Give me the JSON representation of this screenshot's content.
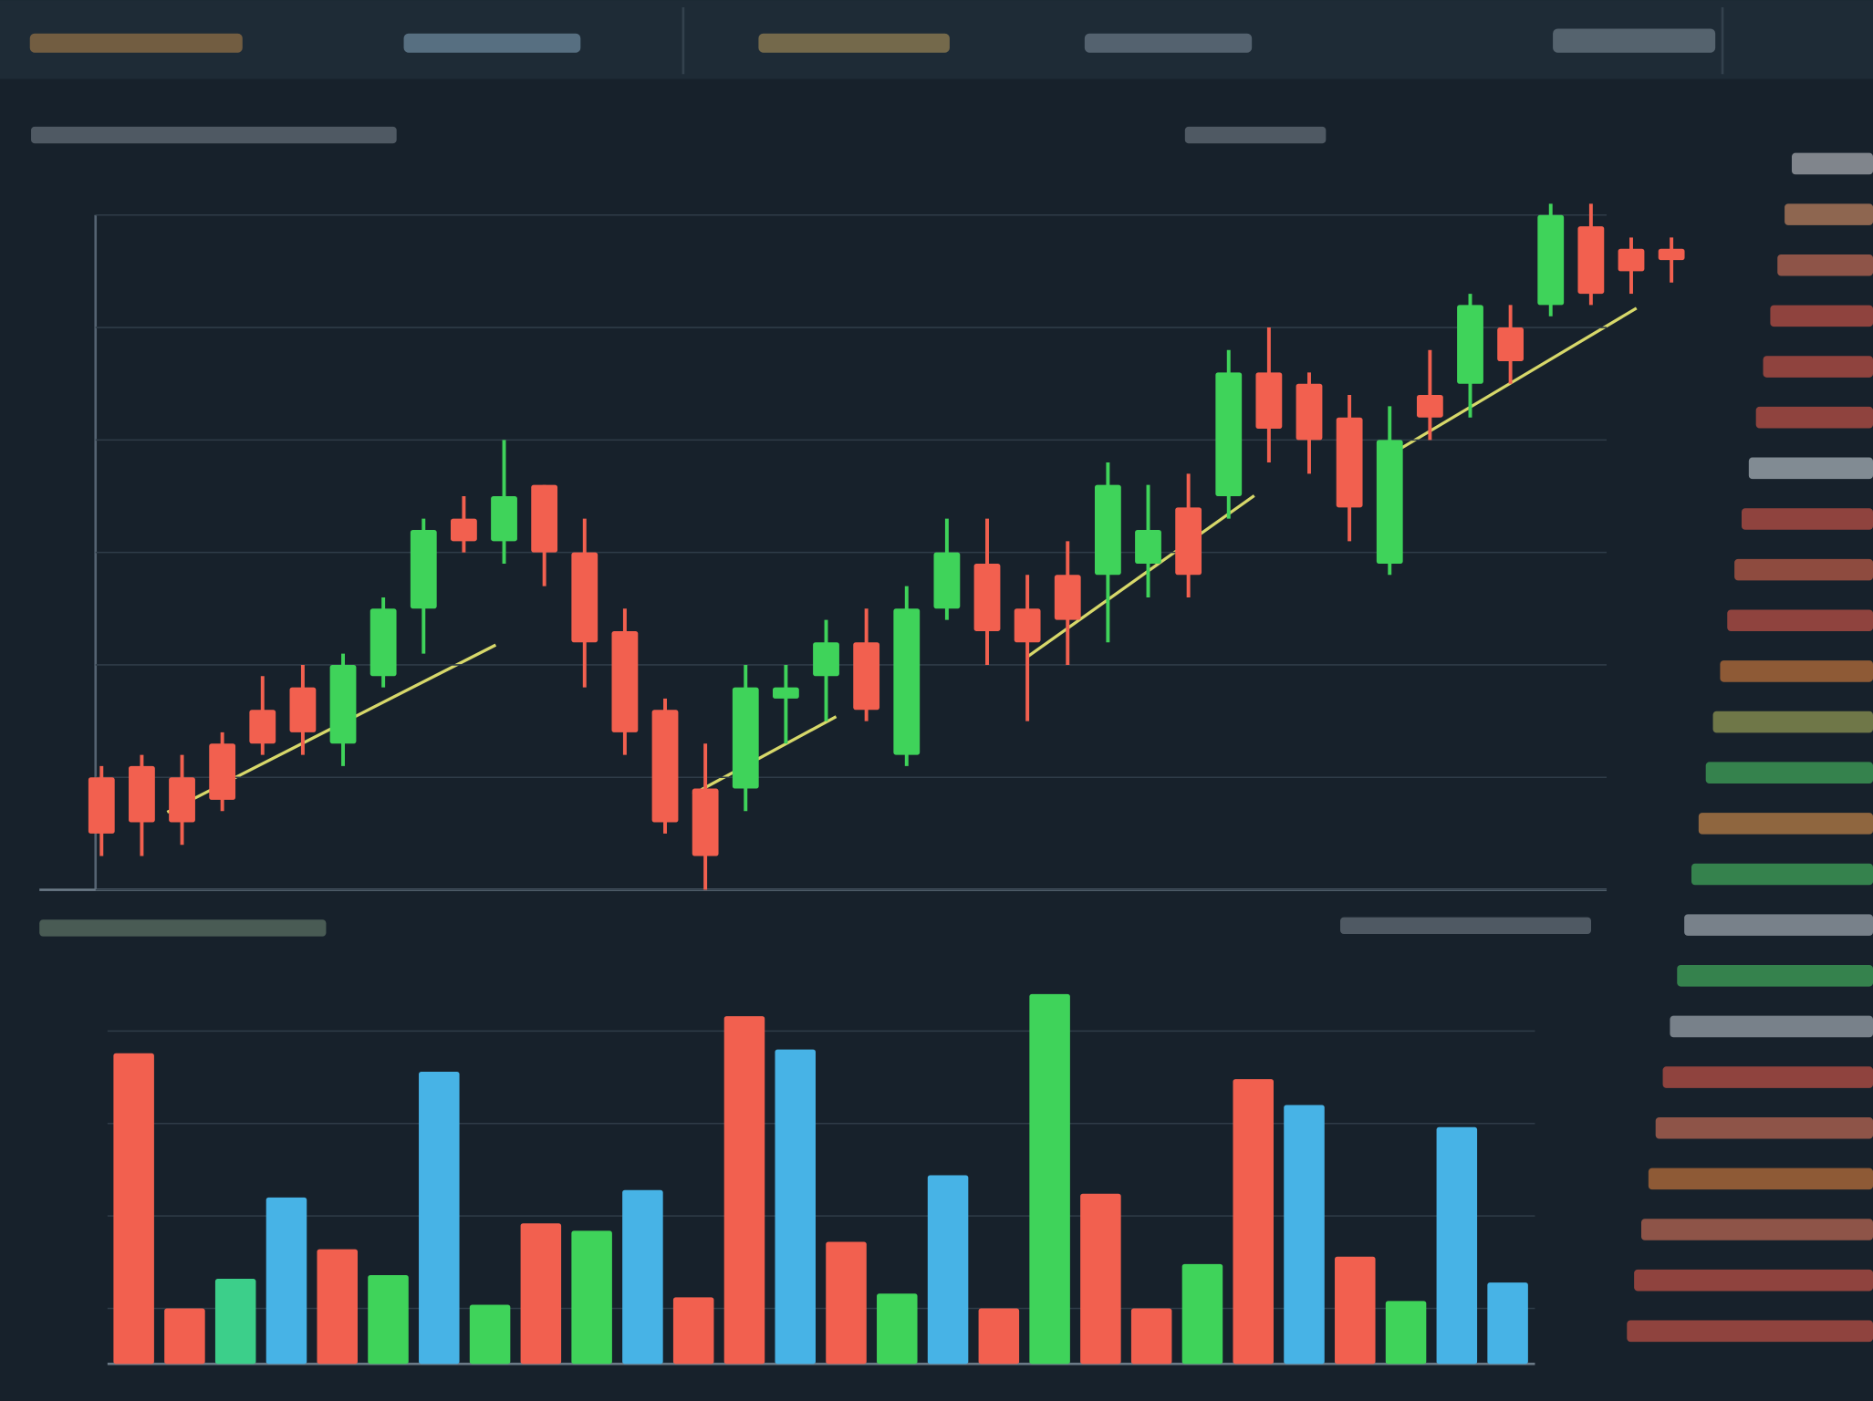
{
  "chart_data": [
    {
      "type": "candlestick",
      "up_color": "#3fd35a",
      "down_color": "#f2604f",
      "open": [
        10,
        11,
        10,
        13,
        16,
        18,
        13,
        19,
        25,
        33,
        31,
        36,
        30,
        23,
        16,
        9,
        9,
        17,
        19,
        22,
        12,
        25,
        29,
        25,
        28,
        28,
        29,
        34,
        35,
        46,
        45,
        42,
        29,
        44,
        45,
        50,
        52,
        59,
        57,
        57
      ],
      "high": [
        11,
        12,
        12,
        14,
        19,
        20,
        21,
        26,
        33,
        35,
        40,
        36,
        33,
        25,
        17,
        13,
        20,
        20,
        24,
        25,
        27,
        33,
        33,
        28,
        31,
        38,
        36,
        37,
        48,
        50,
        46,
        44,
        43,
        48,
        53,
        52,
        61,
        61,
        58,
        58
      ],
      "low": [
        3,
        3,
        4,
        7,
        12,
        12,
        11,
        18,
        21,
        30,
        29,
        27,
        18,
        12,
        5,
        0,
        7,
        13,
        15,
        15,
        11,
        24,
        20,
        15,
        20,
        22,
        26,
        26,
        33,
        38,
        37,
        31,
        28,
        40,
        42,
        45,
        51,
        52,
        53,
        54
      ],
      "close": [
        5,
        6,
        6,
        8,
        13,
        14,
        20,
        25,
        32,
        31,
        35,
        30,
        22,
        14,
        6,
        3,
        18,
        18,
        22,
        16,
        25,
        30,
        23,
        22,
        24,
        36,
        32,
        28,
        46,
        41,
        40,
        34,
        40,
        42,
        52,
        47,
        60,
        53,
        55,
        56
      ],
      "ylim": [
        0,
        60
      ],
      "yticks": [
        0,
        10,
        20,
        30,
        40,
        50,
        60
      ],
      "grid": true
    },
    {
      "type": "bar",
      "values": [
        84,
        15,
        23,
        45,
        31,
        24,
        79,
        16,
        38,
        36,
        47,
        18,
        94,
        85,
        33,
        19,
        51,
        15,
        100,
        46,
        15,
        27,
        77,
        70,
        29,
        17,
        64,
        22
      ],
      "colors": [
        "#f2604f",
        "#f2604f",
        "#3ccf8a",
        "#47b3e6",
        "#f2604f",
        "#3fd35a",
        "#47b3e6",
        "#3fd35a",
        "#f2604f",
        "#3fd35a",
        "#47b3e6",
        "#f2604f",
        "#f2604f",
        "#47b3e6",
        "#f2604f",
        "#3fd35a",
        "#47b3e6",
        "#f2604f",
        "#3fd35a",
        "#f2604f",
        "#f2604f",
        "#3fd35a",
        "#f2604f",
        "#47b3e6",
        "#f2604f",
        "#3fd35a",
        "#47b3e6",
        "#47b3e6"
      ],
      "ylim": [
        0,
        103
      ],
      "yticks": [
        15,
        40,
        65,
        90
      ],
      "grid": true
    }
  ]
}
